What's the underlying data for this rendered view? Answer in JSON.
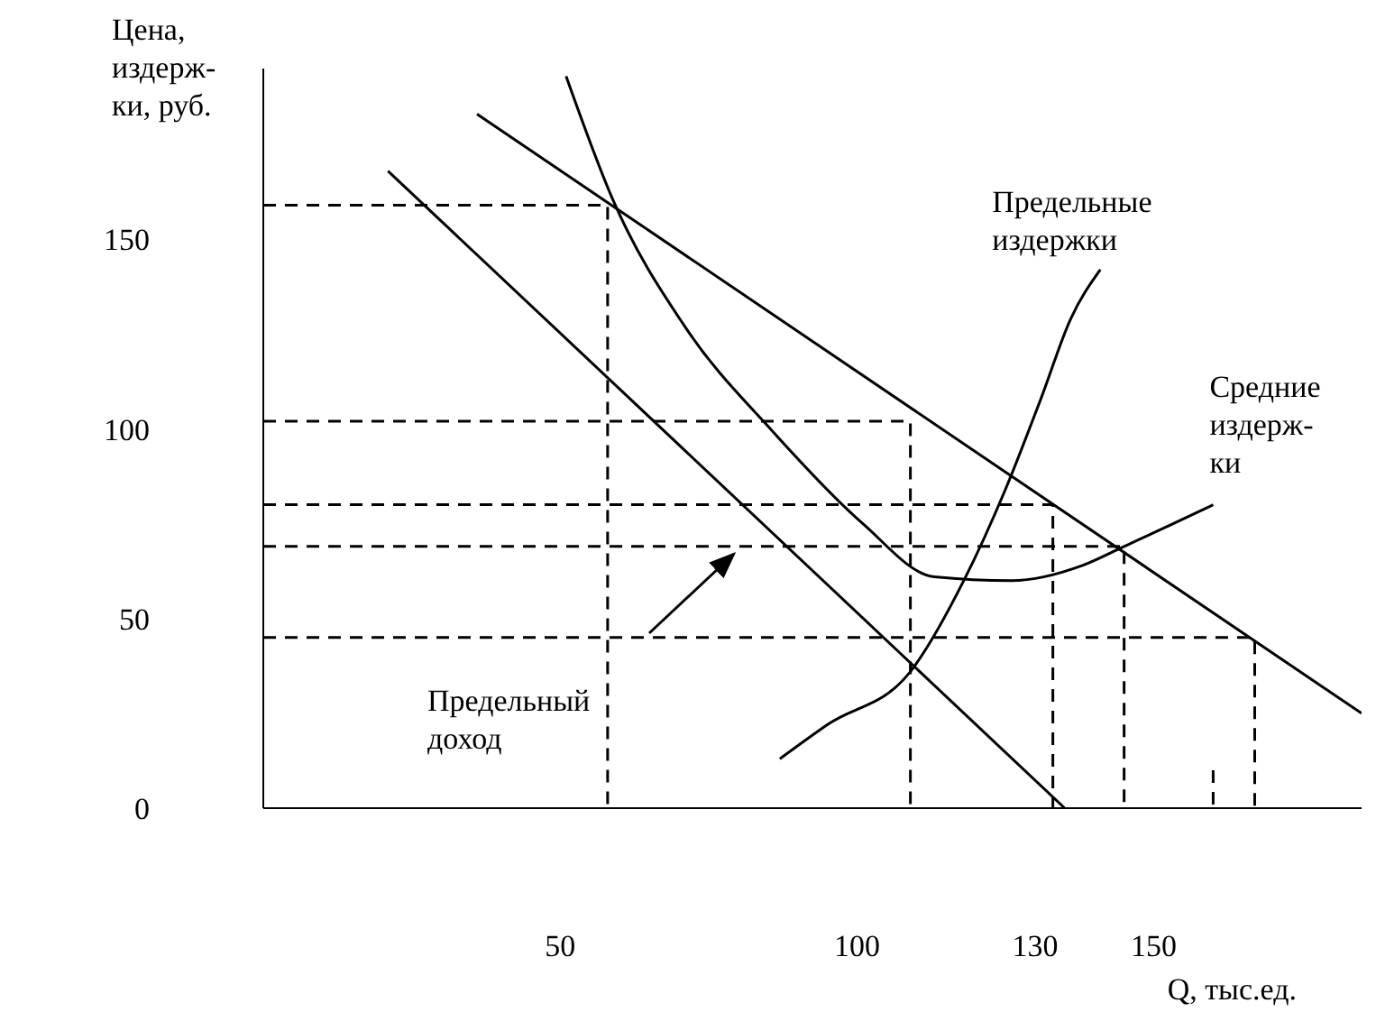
{
  "chart_data": {
    "type": "line",
    "ylabel": "Цена,\nиздерж-\nки, руб.",
    "xlabel": "Q, тыс.ед.",
    "xlim": [
      0,
      185
    ],
    "ylim": [
      0,
      195
    ],
    "xticks": [
      50,
      100,
      130,
      150
    ],
    "yticks": [
      0,
      50,
      100,
      150
    ],
    "series": [
      {
        "color": "#000000",
        "x": [
          36,
          185
        ],
        "values": [
          183,
          25
        ]
      },
      {
        "color": "#000000",
        "x": [
          21,
          135
        ],
        "values": [
          168,
          0
        ]
      },
      {
        "color": "#000000",
        "x": [
          51,
          59,
          71,
          86,
          101,
          113,
          126,
          138,
          145,
          156,
          160
        ],
        "values": [
          193,
          160,
          127,
          99,
          75,
          61,
          60,
          64,
          69,
          77,
          80
        ]
      },
      {
        "color": "#000000",
        "x": [
          87,
          95,
          109,
          118,
          125,
          131,
          136,
          141
        ],
        "values": [
          13,
          22,
          36,
          60,
          84,
          108,
          129,
          142
        ]
      },
      {
        "color": "#000000",
        "line_style": "dashed",
        "x": [
          0,
          58,
          58
        ],
        "values": [
          159,
          159,
          0
        ]
      },
      {
        "color": "#000000",
        "line_style": "dashed",
        "x": [
          0,
          109,
          109
        ],
        "values": [
          102,
          102,
          0
        ]
      },
      {
        "color": "#000000",
        "line_style": "dashed",
        "x": [
          0,
          133,
          133
        ],
        "values": [
          80,
          80,
          0
        ]
      },
      {
        "color": "#000000",
        "line_style": "dashed",
        "x": [
          0,
          145,
          145
        ],
        "values": [
          69,
          69,
          0
        ]
      },
      {
        "color": "#000000",
        "line_style": "dashed",
        "x": [
          0,
          167,
          167
        ],
        "values": [
          45,
          45,
          0
        ]
      },
      {
        "color": "#000000",
        "line_style": "dashed",
        "x": [
          160,
          160
        ],
        "values": [
          10,
          0
        ]
      }
    ],
    "annotations": [
      {
        "text": "Предельные\nиздержки",
        "x": 141,
        "y": 142
      },
      {
        "text": "Средние\nиздерж-\nки",
        "x": 160,
        "y": 80
      },
      "Предельный\nдоход"
    ]
  }
}
